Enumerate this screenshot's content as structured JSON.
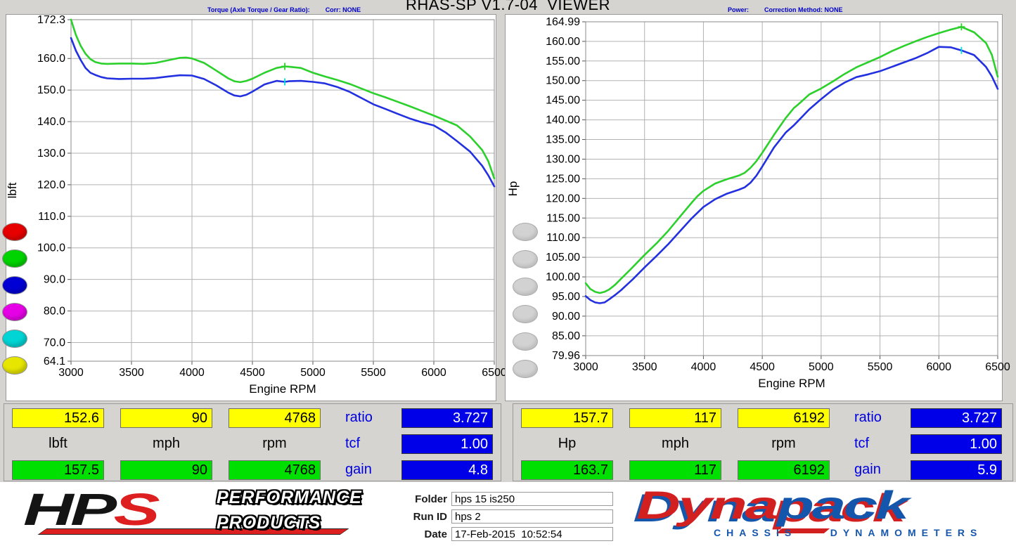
{
  "header": {
    "title": "RHAS-SP V1.7-04  VIEWER"
  },
  "chart_data": [
    {
      "type": "line",
      "title": "Torque (Axle Torque / Gear Ratio):",
      "correction": "Corr: NONE",
      "xlabel": "Engine RPM",
      "ylabel": "lbft",
      "xlim": [
        3000,
        6500
      ],
      "ylim": [
        64.1,
        172.3
      ],
      "x_ticks": [
        "3000",
        "3500",
        "4000",
        "4500",
        "5000",
        "5500",
        "6000",
        "6500"
      ],
      "y_ticks": [
        "172.3",
        "160.0",
        "150.0",
        "140.0",
        "130.0",
        "120.0",
        "110.0",
        "100.0",
        "90.0",
        "80.0",
        "70.0",
        "64.1"
      ],
      "grid": true,
      "series": [
        {
          "name": "corrected-torque",
          "color": "#2bd02b",
          "points": [
            [
              3000,
              172.3
            ],
            [
              3040,
              167.5
            ],
            [
              3080,
              164.0
            ],
            [
              3120,
              161.5
            ],
            [
              3160,
              159.8
            ],
            [
              3200,
              158.9
            ],
            [
              3250,
              158.4
            ],
            [
              3300,
              158.3
            ],
            [
              3400,
              158.4
            ],
            [
              3500,
              158.4
            ],
            [
              3600,
              158.3
            ],
            [
              3700,
              158.6
            ],
            [
              3800,
              159.4
            ],
            [
              3900,
              160.2
            ],
            [
              3950,
              160.3
            ],
            [
              4000,
              160.0
            ],
            [
              4100,
              158.6
            ],
            [
              4200,
              156.2
            ],
            [
              4300,
              153.7
            ],
            [
              4350,
              152.8
            ],
            [
              4400,
              152.5
            ],
            [
              4450,
              152.9
            ],
            [
              4500,
              153.6
            ],
            [
              4600,
              155.5
            ],
            [
              4700,
              157.0
            ],
            [
              4768,
              157.5
            ],
            [
              4800,
              157.4
            ],
            [
              4900,
              157.0
            ],
            [
              5000,
              155.5
            ],
            [
              5100,
              154.3
            ],
            [
              5200,
              153.2
            ],
            [
              5300,
              152.0
            ],
            [
              5400,
              150.5
            ],
            [
              5500,
              149.0
            ],
            [
              5600,
              147.7
            ],
            [
              5700,
              146.3
            ],
            [
              5800,
              144.9
            ],
            [
              5900,
              143.4
            ],
            [
              6000,
              141.9
            ],
            [
              6100,
              140.3
            ],
            [
              6192,
              138.8
            ],
            [
              6300,
              135.3
            ],
            [
              6400,
              131.0
            ],
            [
              6450,
              127.5
            ],
            [
              6500,
              122.0
            ]
          ]
        },
        {
          "name": "measured-torque",
          "color": "#2230e0",
          "points": [
            [
              3000,
              166.5
            ],
            [
              3040,
              162.5
            ],
            [
              3080,
              159.5
            ],
            [
              3120,
              157.0
            ],
            [
              3160,
              155.5
            ],
            [
              3200,
              154.8
            ],
            [
              3250,
              154.1
            ],
            [
              3300,
              153.7
            ],
            [
              3400,
              153.5
            ],
            [
              3500,
              153.6
            ],
            [
              3600,
              153.6
            ],
            [
              3700,
              153.8
            ],
            [
              3800,
              154.3
            ],
            [
              3900,
              154.7
            ],
            [
              4000,
              154.6
            ],
            [
              4100,
              153.5
            ],
            [
              4200,
              151.5
            ],
            [
              4300,
              149.2
            ],
            [
              4350,
              148.3
            ],
            [
              4400,
              148.0
            ],
            [
              4450,
              148.5
            ],
            [
              4500,
              149.5
            ],
            [
              4600,
              151.8
            ],
            [
              4700,
              152.9
            ],
            [
              4768,
              152.6
            ],
            [
              4800,
              152.8
            ],
            [
              4900,
              152.9
            ],
            [
              5000,
              152.6
            ],
            [
              5100,
              152.1
            ],
            [
              5200,
              151.0
            ],
            [
              5300,
              149.5
            ],
            [
              5400,
              147.5
            ],
            [
              5500,
              145.5
            ],
            [
              5600,
              144.0
            ],
            [
              5700,
              142.5
            ],
            [
              5800,
              141.0
            ],
            [
              5900,
              139.8
            ],
            [
              6000,
              138.8
            ],
            [
              6100,
              136.5
            ],
            [
              6192,
              133.8
            ],
            [
              6300,
              130.5
            ],
            [
              6400,
              126.0
            ],
            [
              6450,
              123.0
            ],
            [
              6500,
              119.5
            ]
          ]
        }
      ],
      "markers": [
        {
          "x": 4768,
          "y": 157.5,
          "color": "#2bd02b",
          "type": "plus"
        },
        {
          "x": 4768,
          "y": 152.6,
          "color": "#00e0e0",
          "type": "tick"
        }
      ]
    },
    {
      "type": "line",
      "title": "Power:",
      "correction": "Correction Method: NONE",
      "xlabel": "Engine RPM",
      "ylabel": "Hp",
      "xlim": [
        3000,
        6500
      ],
      "ylim": [
        79.96,
        164.99
      ],
      "x_ticks": [
        "3000",
        "3500",
        "4000",
        "4500",
        "5000",
        "5500",
        "6000",
        "6500"
      ],
      "y_ticks": [
        "164.99",
        "160.00",
        "155.00",
        "150.00",
        "145.00",
        "140.00",
        "135.00",
        "130.00",
        "125.00",
        "120.00",
        "115.00",
        "110.00",
        "105.00",
        "100.00",
        "95.00",
        "90.00",
        "85.00",
        "79.96"
      ],
      "grid": true,
      "series": [
        {
          "name": "corrected-power",
          "color": "#2bd02b",
          "points": [
            [
              3000,
              98.4
            ],
            [
              3040,
              96.9
            ],
            [
              3080,
              96.2
            ],
            [
              3120,
              95.9
            ],
            [
              3160,
              96.2
            ],
            [
              3200,
              96.8
            ],
            [
              3250,
              98.0
            ],
            [
              3300,
              99.5
            ],
            [
              3400,
              102.5
            ],
            [
              3500,
              105.6
            ],
            [
              3600,
              108.5
            ],
            [
              3700,
              111.7
            ],
            [
              3800,
              115.3
            ],
            [
              3900,
              118.9
            ],
            [
              3950,
              120.6
            ],
            [
              4000,
              121.9
            ],
            [
              4100,
              123.8
            ],
            [
              4200,
              124.9
            ],
            [
              4300,
              125.8
            ],
            [
              4350,
              126.5
            ],
            [
              4400,
              127.8
            ],
            [
              4450,
              129.5
            ],
            [
              4500,
              131.6
            ],
            [
              4600,
              136.2
            ],
            [
              4700,
              140.5
            ],
            [
              4768,
              143.0
            ],
            [
              4800,
              143.8
            ],
            [
              4900,
              146.5
            ],
            [
              5000,
              148.0
            ],
            [
              5100,
              149.8
            ],
            [
              5200,
              151.7
            ],
            [
              5300,
              153.4
            ],
            [
              5400,
              154.7
            ],
            [
              5500,
              156.0
            ],
            [
              5600,
              157.5
            ],
            [
              5700,
              158.8
            ],
            [
              5800,
              160.0
            ],
            [
              5900,
              161.1
            ],
            [
              6000,
              162.1
            ],
            [
              6100,
              163.0
            ],
            [
              6192,
              163.7
            ],
            [
              6300,
              162.3
            ],
            [
              6400,
              159.6
            ],
            [
              6450,
              156.6
            ],
            [
              6500,
              151.0
            ]
          ]
        },
        {
          "name": "measured-power",
          "color": "#2230e0",
          "points": [
            [
              3000,
              95.1
            ],
            [
              3040,
              94.1
            ],
            [
              3080,
              93.5
            ],
            [
              3120,
              93.3
            ],
            [
              3160,
              93.5
            ],
            [
              3200,
              94.3
            ],
            [
              3250,
              95.4
            ],
            [
              3300,
              96.6
            ],
            [
              3400,
              99.4
            ],
            [
              3500,
              102.4
            ],
            [
              3600,
              105.3
            ],
            [
              3700,
              108.3
            ],
            [
              3800,
              111.6
            ],
            [
              3900,
              114.9
            ],
            [
              4000,
              117.8
            ],
            [
              4100,
              119.8
            ],
            [
              4200,
              121.2
            ],
            [
              4300,
              122.2
            ],
            [
              4350,
              122.8
            ],
            [
              4400,
              124.0
            ],
            [
              4450,
              125.8
            ],
            [
              4500,
              128.1
            ],
            [
              4600,
              133.0
            ],
            [
              4700,
              136.8
            ],
            [
              4768,
              138.6
            ],
            [
              4800,
              139.6
            ],
            [
              4900,
              142.7
            ],
            [
              5000,
              145.3
            ],
            [
              5100,
              147.7
            ],
            [
              5200,
              149.5
            ],
            [
              5300,
              150.9
            ],
            [
              5400,
              151.6
            ],
            [
              5500,
              152.4
            ],
            [
              5600,
              153.5
            ],
            [
              5700,
              154.6
            ],
            [
              5800,
              155.7
            ],
            [
              5900,
              157.0
            ],
            [
              6000,
              158.6
            ],
            [
              6100,
              158.5
            ],
            [
              6192,
              157.7
            ],
            [
              6300,
              156.5
            ],
            [
              6400,
              153.5
            ],
            [
              6450,
              151.1
            ],
            [
              6500,
              147.9
            ]
          ]
        }
      ],
      "markers": [
        {
          "x": 6192,
          "y": 163.7,
          "color": "#2bd02b",
          "type": "plus"
        },
        {
          "x": 6192,
          "y": 157.7,
          "color": "#00e0e0",
          "type": "tick"
        }
      ]
    }
  ],
  "palette": [
    {
      "name": "red",
      "color": "#e60000"
    },
    {
      "name": "green",
      "color": "#00d400"
    },
    {
      "name": "blue",
      "color": "#0000d4"
    },
    {
      "name": "magenta",
      "color": "#e600e6"
    },
    {
      "name": "cyan",
      "color": "#00d4d4"
    },
    {
      "name": "yellow",
      "color": "#e6e600"
    }
  ],
  "gray_slots": 6,
  "readouts": {
    "left": {
      "yellow": [
        "152.6",
        "90",
        "4768"
      ],
      "units": [
        "lbft",
        "mph",
        "rpm"
      ],
      "green": [
        "157.5",
        "90",
        "4768"
      ],
      "stats_labels": [
        "ratio",
        "tcf",
        "gain"
      ],
      "stats_values": [
        "3.727",
        "1.00",
        "4.8"
      ]
    },
    "right": {
      "yellow": [
        "157.7",
        "117",
        "6192"
      ],
      "units": [
        "Hp",
        "mph",
        "rpm"
      ],
      "green": [
        "163.7",
        "117",
        "6192"
      ],
      "stats_labels": [
        "ratio",
        "tcf",
        "gain"
      ],
      "stats_values": [
        "3.727",
        "1.00",
        "5.9"
      ]
    }
  },
  "run_info": {
    "folder_label": "Folder",
    "folder": "hps 15 is250",
    "run_id_label": "Run ID",
    "run_id": "hps 2",
    "date_label": "Date",
    "date": "17-Feb-2015  10:52:54"
  },
  "branding": {
    "hps": {
      "hp": "HP",
      "s": "S",
      "line1": "PERFORMANCE",
      "line2": "PRODUCTS"
    },
    "dynapack": {
      "part1": "Dyna",
      "part2": "pack",
      "sub1": "CHASSIS",
      "sub2": "DYNAMOMETERS"
    }
  }
}
